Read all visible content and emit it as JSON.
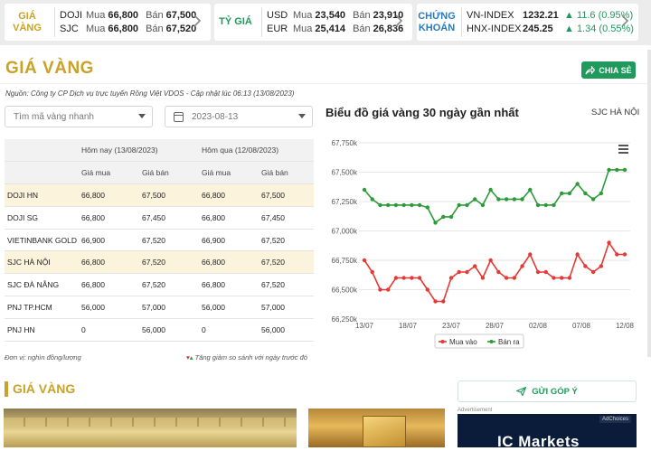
{
  "ticker": {
    "gold": {
      "label": "GIÁ VÀNG",
      "rows": [
        {
          "name": "DOJI",
          "buy_label": "Mua",
          "buy": "66,800",
          "sell_label": "Bán",
          "sell": "67,500"
        },
        {
          "name": "SJC",
          "buy_label": "Mua",
          "buy": "66,800",
          "sell_label": "Bán",
          "sell": "67,520"
        }
      ]
    },
    "fx": {
      "label": "TỶ GIÁ",
      "rows": [
        {
          "name": "USD",
          "buy_label": "Mua",
          "buy": "23,540",
          "sell_label": "Bán",
          "sell": "23,910"
        },
        {
          "name": "EUR",
          "buy_label": "Mua",
          "buy": "25,414",
          "sell_label": "Bán",
          "sell": "26,836"
        }
      ]
    },
    "stocks": {
      "label_line1": "CHỨNG",
      "label_line2": "KHOÁN",
      "rows": [
        {
          "name": "VN-INDEX",
          "value": "1232.21",
          "change": "▲ 11.6 (0.95%)"
        },
        {
          "name": "HNX-INDEX",
          "value": "245.25",
          "change": "▲ 1.34 (0.55%)"
        }
      ]
    }
  },
  "page": {
    "title": "GIÁ VÀNG",
    "share_label": "CHIA SẺ",
    "source": "Nguồn: Công ty CP Dịch vụ trực tuyến Rồng Việt VDOS - Cập nhật lúc 06:13 (13/08/2023)",
    "search_placeholder": "Tìm mã vàng nhanh",
    "date_value": "2023-08-13"
  },
  "table": {
    "header_today": "Hôm nay (13/08/2023)",
    "header_yesterday": "Hôm qua (12/08/2023)",
    "buy": "Giá mua",
    "sell": "Giá bán",
    "rows": [
      {
        "name": "DOJI HN",
        "tb": "66,800",
        "ts": "67,500",
        "yb": "66,800",
        "ys": "67,500",
        "hl": true
      },
      {
        "name": "DOJI SG",
        "tb": "66,800",
        "ts": "67,450",
        "yb": "66,800",
        "ys": "67,450",
        "hl": false
      },
      {
        "name": "VIETINBANK GOLD",
        "tb": "66,900",
        "ts": "67,520",
        "yb": "66,900",
        "ys": "67,520",
        "hl": false
      },
      {
        "name": "SJC HÀ NỘI",
        "tb": "66,800",
        "ts": "67,520",
        "yb": "66,800",
        "ys": "67,520",
        "hl": true
      },
      {
        "name": "SJC ĐÀ NẴNG",
        "tb": "66,800",
        "ts": "67,520",
        "yb": "66,800",
        "ys": "67,520",
        "hl": false
      },
      {
        "name": "PNJ TP.HCM",
        "tb": "56,000",
        "ts": "57,000",
        "yb": "56,000",
        "ys": "57,000",
        "hl": false
      },
      {
        "name": "PNJ HN",
        "tb": "0",
        "ts": "56,000",
        "yb": "0",
        "ys": "56,000",
        "hl": false
      }
    ],
    "unit_note": "Đơn vị: nghìn đồng/lượng",
    "compare_note": "Tăng giảm so sánh với ngày trước đó"
  },
  "chart_data": {
    "type": "line",
    "title": "Biểu đồ giá vàng 30 ngày gần nhất",
    "location": "SJC HÀ NỘI",
    "ylim": [
      66250,
      67750
    ],
    "yticks": [
      "67,750k",
      "67,500k",
      "67,250k",
      "67,000k",
      "66,750k",
      "66,500k",
      "66,250k"
    ],
    "xticks": [
      "13/07",
      "18/07",
      "23/07",
      "28/07",
      "02/08",
      "07/08",
      "12/08"
    ],
    "grid": true,
    "legend": "bottom",
    "colors": {
      "buy": "#e53935",
      "sell": "#2e9b3a"
    },
    "series": [
      {
        "name": "Mua vào",
        "values": [
          66750,
          66650,
          66500,
          66500,
          66600,
          66600,
          66600,
          66600,
          66500,
          66400,
          66400,
          66600,
          66650,
          66650,
          66700,
          66600,
          66750,
          66650,
          66600,
          66600,
          66700,
          66800,
          66650,
          66650,
          66600,
          66600,
          66600,
          66800,
          66700,
          66650,
          66700,
          66900,
          66800,
          66800
        ]
      },
      {
        "name": "Bán ra",
        "values": [
          67350,
          67270,
          67220,
          67220,
          67220,
          67220,
          67220,
          67220,
          67200,
          67070,
          67120,
          67120,
          67220,
          67220,
          67270,
          67220,
          67350,
          67270,
          67270,
          67270,
          67270,
          67350,
          67220,
          67220,
          67220,
          67320,
          67320,
          67400,
          67320,
          67270,
          67320,
          67520,
          67520,
          67520
        ]
      }
    ]
  },
  "bottom": {
    "title": "GIÁ VÀNG",
    "feedback_label": "GỬI GÓP Ý",
    "ad_label": "Advertisement",
    "ad_brand": "IC Markets",
    "ad_tag": "AdChoices"
  }
}
